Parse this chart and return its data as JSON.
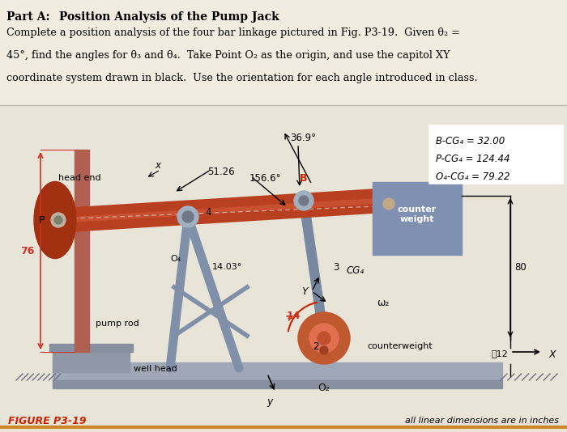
{
  "bg_color": "#e8e4d8",
  "text_bg": "#f0ece0",
  "title_part": "Part A: ",
  "title_rest": " Position Analysis of the Pump Jack",
  "body_lines": [
    "Complete a position analysis of the four bar linkage pictured in Fig. P3-19.  Given θ₂ =",
    "45°, find the angles for θ₃ and θ₄.  Take Point O₂ as the origin, and use the capitol XY",
    "coordinate system drawn in black.  Use the orientation for each angle introduced in class."
  ],
  "figure_label": "FIGURE P3-19",
  "note_label": "all linear dimensions are in inches",
  "legend_lines": [
    "B-CG₄ = 32.00",
    "P-CG₄ = 124.44",
    "O₄-CG₄ = 79.22"
  ],
  "beam_color": "#b84020",
  "head_color": "#a03010",
  "derrick_color": "#8090a8",
  "coupler_color": "#7888a0",
  "crank_color": "#7888a0",
  "crank_disk_color": "#c05830",
  "ground_bar_color": "#a0a8b8",
  "ground_base_color": "#8890a0",
  "well_head_color": "#9098a8",
  "pump_rod_color": "#b06050",
  "cw_box_color": "#8090b0",
  "dim_color": "#cc3322",
  "dim76_color": "#cc3322"
}
